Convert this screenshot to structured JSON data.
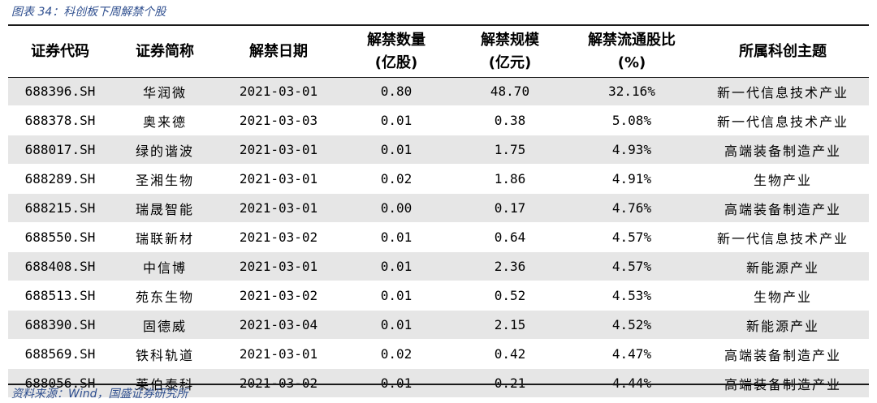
{
  "caption": "图表 34：科创板下周解禁个股",
  "columns": [
    {
      "line1": "证券代码",
      "line2": ""
    },
    {
      "line1": "证券简称",
      "line2": ""
    },
    {
      "line1": "解禁日期",
      "line2": ""
    },
    {
      "line1": "解禁数量",
      "line2": "(亿股)"
    },
    {
      "line1": "解禁规模",
      "line2": "(亿元)"
    },
    {
      "line1": "解禁流通股比",
      "line2": "(%)"
    },
    {
      "line1": "所属科创主题",
      "line2": ""
    }
  ],
  "rows": [
    [
      "688396.SH",
      "华润微",
      "2021-03-01",
      "0.80",
      "48.70",
      "32.16%",
      "新一代信息技术产业"
    ],
    [
      "688378.SH",
      "奥来德",
      "2021-03-03",
      "0.01",
      "0.38",
      "5.08%",
      "新一代信息技术产业"
    ],
    [
      "688017.SH",
      "绿的谐波",
      "2021-03-01",
      "0.01",
      "1.75",
      "4.93%",
      "高端装备制造产业"
    ],
    [
      "688289.SH",
      "圣湘生物",
      "2021-03-01",
      "0.02",
      "1.86",
      "4.91%",
      "生物产业"
    ],
    [
      "688215.SH",
      "瑞晟智能",
      "2021-03-01",
      "0.00",
      "0.17",
      "4.76%",
      "高端装备制造产业"
    ],
    [
      "688550.SH",
      "瑞联新材",
      "2021-03-02",
      "0.01",
      "0.64",
      "4.57%",
      "新一代信息技术产业"
    ],
    [
      "688408.SH",
      "中信博",
      "2021-03-01",
      "0.01",
      "2.36",
      "4.57%",
      "新能源产业"
    ],
    [
      "688513.SH",
      "苑东生物",
      "2021-03-02",
      "0.01",
      "0.52",
      "4.53%",
      "生物产业"
    ],
    [
      "688390.SH",
      "固德威",
      "2021-03-04",
      "0.01",
      "2.15",
      "4.52%",
      "新能源产业"
    ],
    [
      "688569.SH",
      "铁科轨道",
      "2021-03-01",
      "0.02",
      "0.42",
      "4.47%",
      "高端装备制造产业"
    ],
    [
      "688056.SH",
      "莱伯泰科",
      "2021-03-02",
      "0.01",
      "0.21",
      "4.44%",
      "高端装备制造产业"
    ]
  ],
  "source": "资料来源：Wind，国盛证券研究所"
}
